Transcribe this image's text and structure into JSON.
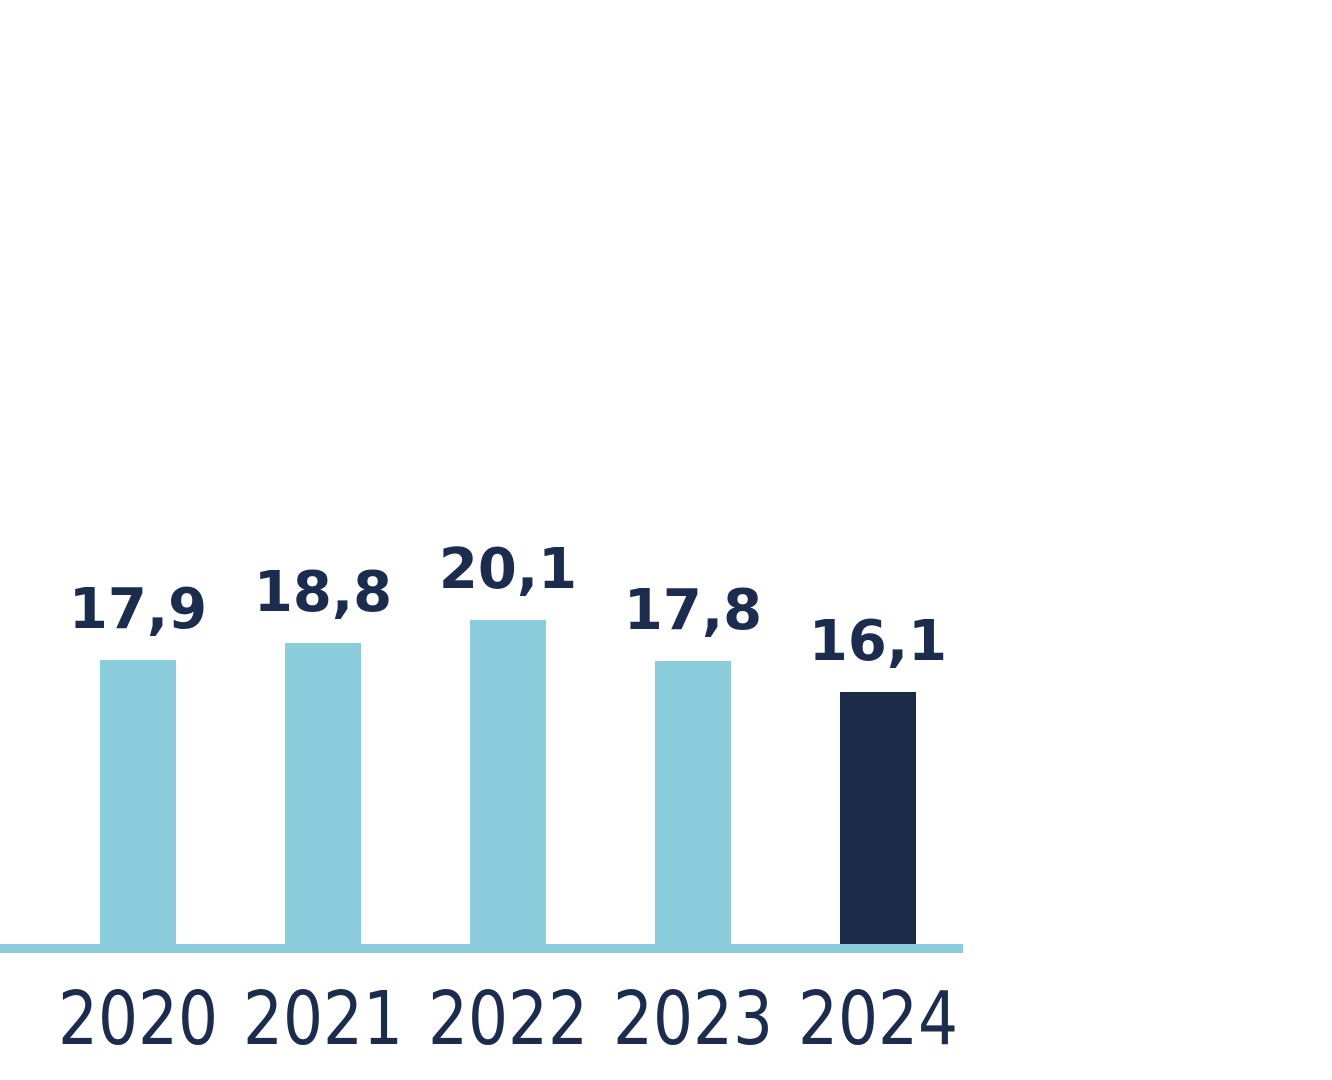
{
  "chart_data": {
    "type": "bar",
    "categories": [
      "2020",
      "2021",
      "2022",
      "2023",
      "2024"
    ],
    "values": [
      17.9,
      18.8,
      20.1,
      17.8,
      16.1
    ],
    "value_labels": [
      "17,9",
      "18,8",
      "20,1",
      "17,8",
      "16,1"
    ],
    "title": "",
    "xlabel": "",
    "ylabel": "",
    "ylim": [
      0,
      22
    ],
    "grid": false,
    "legend_position": "none",
    "decimal_separator": ",",
    "highlight_index": 4,
    "colors": {
      "bar": "#8BCDDC",
      "bar_highlight": "#1B2A48",
      "axis_line": "#8BCDDC",
      "value_label": "#1C2C4E",
      "category_label": "#1C2C4E"
    }
  }
}
